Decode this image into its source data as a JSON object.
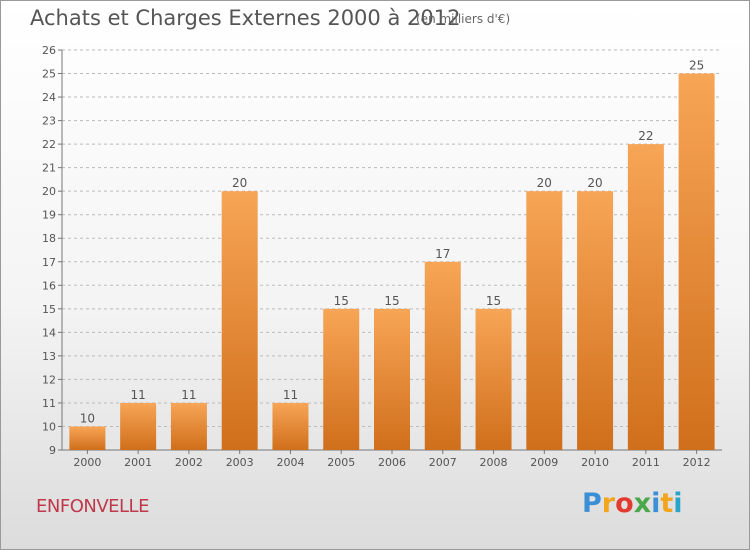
{
  "title": "Achats et Charges Externes 2000 à 2012",
  "subtitle": "(en milliers d'€)",
  "commune": "ENFONVELLE",
  "logo": {
    "letters": [
      "P",
      "r",
      "o",
      "x",
      "i",
      "t",
      "i"
    ],
    "colors": [
      "#3a8fd6",
      "#f2a51c",
      "#e23a2e",
      "#4aa84a",
      "#3a8fd6",
      "#f2a51c",
      "#2aa3c8"
    ]
  },
  "colors": {
    "bar_light": "#f7a556",
    "bar_dark": "#d06f1b",
    "text": "#555555",
    "grid": "#bbbbbb"
  },
  "chart_data": {
    "type": "bar",
    "categories": [
      "2000",
      "2001",
      "2002",
      "2003",
      "2004",
      "2005",
      "2006",
      "2007",
      "2008",
      "2009",
      "2010",
      "2011",
      "2012"
    ],
    "values": [
      10,
      11,
      11,
      20,
      11,
      15,
      15,
      17,
      15,
      20,
      20,
      22,
      25
    ],
    "ylim": [
      9,
      26
    ],
    "yticks": [
      9,
      10,
      11,
      12,
      13,
      14,
      15,
      16,
      17,
      18,
      19,
      20,
      21,
      22,
      23,
      24,
      25,
      26
    ],
    "grid": true,
    "data_labels": true
  }
}
